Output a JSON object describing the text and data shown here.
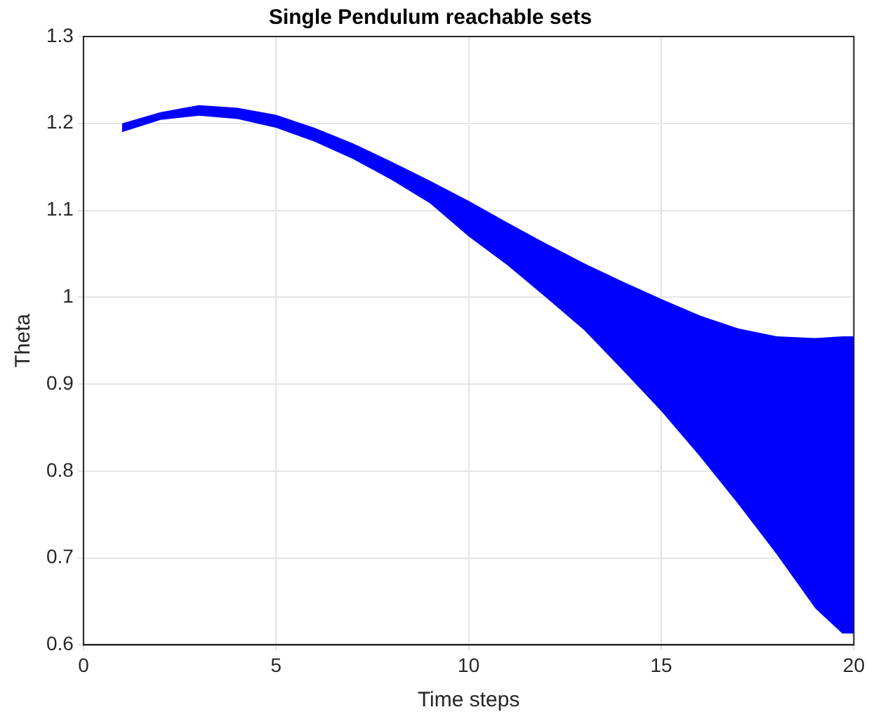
{
  "chart_data": {
    "type": "area",
    "title": "Single Pendulum reachable sets",
    "xlabel": "Time steps",
    "ylabel": "Theta",
    "x": [
      1,
      2,
      3,
      4,
      5,
      6,
      7,
      8,
      9,
      10,
      11,
      12,
      13,
      14,
      15,
      16,
      17,
      18,
      19,
      19.7,
      20
    ],
    "series": [
      {
        "color": "#0000ff",
        "values": [
          null,
          null,
          null,
          null,
          null,
          null,
          null,
          null,
          null,
          null,
          null,
          null,
          null,
          null,
          null,
          null,
          null,
          null,
          null,
          null,
          null
        ],
        "upper": [
          1.2,
          1.213,
          1.221,
          1.218,
          1.21,
          1.195,
          1.177,
          1.156,
          1.134,
          1.111,
          1.086,
          1.062,
          1.039,
          1.018,
          0.998,
          0.979,
          0.964,
          0.955,
          0.953,
          0.955,
          0.955
        ],
        "lower": [
          1.19,
          1.204,
          1.209,
          1.205,
          1.195,
          1.179,
          1.159,
          1.135,
          1.108,
          1.07,
          1.037,
          1.0,
          0.962,
          0.916,
          0.869,
          0.817,
          0.762,
          0.704,
          0.642,
          0.613,
          0.613
        ]
      }
    ],
    "xlim": [
      0,
      20
    ],
    "xticks": [
      0,
      5,
      10,
      15,
      20
    ],
    "ylim": [
      0.6,
      1.3
    ],
    "yticks": [
      0.6,
      0.7,
      0.8,
      0.9,
      1,
      1.1,
      1.2,
      1.3
    ],
    "grid": true,
    "legend": false
  }
}
